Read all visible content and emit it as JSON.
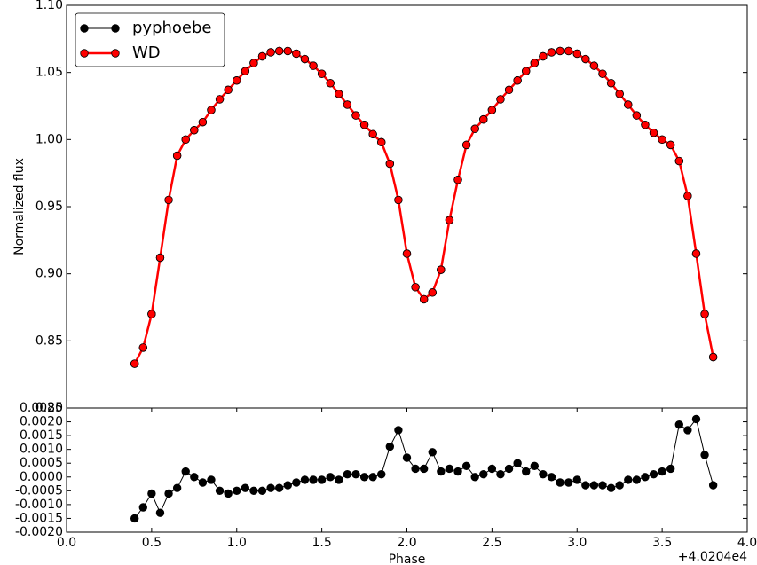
{
  "chart_data": [
    {
      "type": "line",
      "ylabel": "Normalized flux",
      "legend": "upper left",
      "xlim": [
        0,
        4
      ],
      "ylim": [
        0.8,
        1.1
      ],
      "yticks": [
        {
          "value": 0.8,
          "label": "0.80"
        },
        {
          "value": 0.85,
          "label": "0.85"
        },
        {
          "value": 0.9,
          "label": "0.90"
        },
        {
          "value": 0.95,
          "label": "0.95"
        },
        {
          "value": 1.0,
          "label": "1.00"
        },
        {
          "value": 1.05,
          "label": "1.05"
        },
        {
          "value": 1.1,
          "label": "1.10"
        }
      ],
      "x": [
        0.4,
        0.45,
        0.5,
        0.55,
        0.6,
        0.65,
        0.7,
        0.75,
        0.8,
        0.85,
        0.9,
        0.95,
        1.0,
        1.05,
        1.1,
        1.15,
        1.2,
        1.25,
        1.3,
        1.35,
        1.4,
        1.45,
        1.5,
        1.55,
        1.6,
        1.65,
        1.7,
        1.75,
        1.8,
        1.85,
        1.9,
        1.95,
        2.0,
        2.05,
        2.1,
        2.15,
        2.2,
        2.25,
        2.3,
        2.35,
        2.4,
        2.45,
        2.5,
        2.55,
        2.6,
        2.65,
        2.7,
        2.75,
        2.8,
        2.85,
        2.9,
        2.95,
        3.0,
        3.05,
        3.1,
        3.15,
        3.2,
        3.25,
        3.3,
        3.35,
        3.4,
        3.45,
        3.5,
        3.55,
        3.6,
        3.65,
        3.7,
        3.75,
        3.8
      ],
      "series": [
        {
          "name": "pyphoebe",
          "color": "#000000",
          "values": [
            0.833,
            0.845,
            0.87,
            0.912,
            0.955,
            0.988,
            1.0,
            1.007,
            1.013,
            1.022,
            1.03,
            1.037,
            1.044,
            1.051,
            1.057,
            1.062,
            1.065,
            1.066,
            1.066,
            1.064,
            1.06,
            1.055,
            1.049,
            1.042,
            1.034,
            1.026,
            1.018,
            1.011,
            1.004,
            0.998,
            0.982,
            0.955,
            0.915,
            0.89,
            0.881,
            0.886,
            0.903,
            0.94,
            0.97,
            0.996,
            1.008,
            1.015,
            1.022,
            1.03,
            1.037,
            1.044,
            1.051,
            1.057,
            1.062,
            1.065,
            1.066,
            1.066,
            1.064,
            1.06,
            1.055,
            1.049,
            1.042,
            1.034,
            1.026,
            1.018,
            1.011,
            1.005,
            1.0,
            0.996,
            0.984,
            0.958,
            0.915,
            0.87,
            0.838
          ]
        },
        {
          "name": "WD",
          "color": "#ff0000",
          "values": [
            0.833,
            0.845,
            0.87,
            0.912,
            0.955,
            0.988,
            1.0,
            1.007,
            1.013,
            1.022,
            1.03,
            1.037,
            1.044,
            1.051,
            1.057,
            1.062,
            1.065,
            1.066,
            1.066,
            1.064,
            1.06,
            1.055,
            1.049,
            1.042,
            1.034,
            1.026,
            1.018,
            1.011,
            1.004,
            0.998,
            0.982,
            0.955,
            0.915,
            0.89,
            0.881,
            0.886,
            0.903,
            0.94,
            0.97,
            0.996,
            1.008,
            1.015,
            1.022,
            1.03,
            1.037,
            1.044,
            1.051,
            1.057,
            1.062,
            1.065,
            1.066,
            1.066,
            1.064,
            1.06,
            1.055,
            1.049,
            1.042,
            1.034,
            1.026,
            1.018,
            1.011,
            1.005,
            1.0,
            0.996,
            0.984,
            0.958,
            0.915,
            0.87,
            0.838
          ]
        }
      ]
    },
    {
      "type": "line",
      "xlabel": "Phase",
      "x_offset_label": "+4.0204e4",
      "color": "#000000",
      "xlim": [
        0,
        4
      ],
      "ylim": [
        -0.002,
        0.0025
      ],
      "xticks": [
        {
          "value": 0,
          "label": "0.0"
        },
        0.5,
        {
          "value": 1,
          "label": "1.0"
        },
        1.5,
        {
          "value": 2,
          "label": "2.0"
        },
        2.5,
        {
          "value": 3,
          "label": "3.0"
        },
        3.5,
        {
          "value": 4,
          "label": "4.0"
        }
      ],
      "yticks": [
        {
          "value": -0.002,
          "label": "-0.0020"
        },
        {
          "value": -0.0015,
          "label": "-0.0015"
        },
        {
          "value": -0.001,
          "label": "-0.0010"
        },
        {
          "value": -0.0005,
          "label": "-0.0005"
        },
        {
          "value": 0,
          "label": "0.0000"
        },
        {
          "value": 0.0005,
          "label": "0.0005"
        },
        {
          "value": 0.001,
          "label": "0.0010"
        },
        {
          "value": 0.0015,
          "label": "0.0015"
        },
        {
          "value": 0.002,
          "label": "0.0020"
        },
        {
          "value": 0.0025,
          "label": "0.0025"
        }
      ],
      "x": [
        0.4,
        0.45,
        0.5,
        0.55,
        0.6,
        0.65,
        0.7,
        0.75,
        0.8,
        0.85,
        0.9,
        0.95,
        1.0,
        1.05,
        1.1,
        1.15,
        1.2,
        1.25,
        1.3,
        1.35,
        1.4,
        1.45,
        1.5,
        1.55,
        1.6,
        1.65,
        1.7,
        1.75,
        1.8,
        1.85,
        1.9,
        1.95,
        2.0,
        2.05,
        2.1,
        2.15,
        2.2,
        2.25,
        2.3,
        2.35,
        2.4,
        2.45,
        2.5,
        2.55,
        2.6,
        2.65,
        2.7,
        2.75,
        2.8,
        2.85,
        2.9,
        2.95,
        3.0,
        3.05,
        3.1,
        3.15,
        3.2,
        3.25,
        3.3,
        3.35,
        3.4,
        3.45,
        3.5,
        3.55,
        3.6,
        3.65,
        3.7,
        3.75,
        3.8
      ],
      "values": [
        -0.0015,
        -0.0011,
        -0.0006,
        -0.0013,
        -0.0006,
        -0.0004,
        0.0002,
        0,
        -0.0002,
        -0.0001,
        -0.0005,
        -0.0006,
        -0.0005,
        -0.0004,
        -0.0005,
        -0.0005,
        -0.0004,
        -0.0004,
        -0.0003,
        -0.0002,
        -0.0001,
        -0.0001,
        -0.0001,
        0,
        -0.0001,
        0.0001,
        0.0001,
        0,
        0,
        0.0001,
        0.0011,
        0.0017,
        0.0007,
        0.0003,
        0.0003,
        0.0009,
        0.0002,
        0.0003,
        0.0002,
        0.0004,
        0,
        0.0001,
        0.0003,
        0.0001,
        0.0003,
        0.0005,
        0.0002,
        0.0004,
        0.0001,
        0,
        -0.0002,
        -0.0002,
        -0.0001,
        -0.0003,
        -0.0003,
        -0.0003,
        -0.0004,
        -0.0003,
        -0.0001,
        -0.0001,
        0,
        0.0001,
        0.0002,
        0.0003,
        0.0019,
        0.0017,
        0.0021,
        0.0008,
        -0.0003
      ]
    }
  ]
}
